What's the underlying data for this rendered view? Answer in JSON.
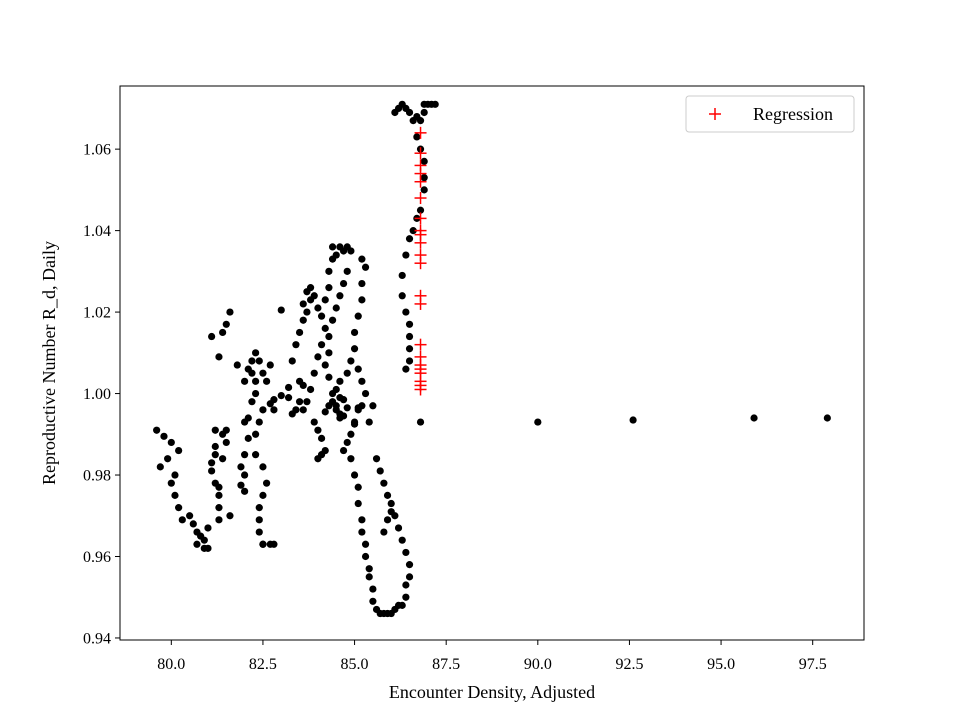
{
  "chart_data": {
    "type": "scatter",
    "title": "",
    "xlabel": "Encounter Density, Adjusted",
    "ylabel": "Reproductive Number R_d, Daily",
    "xlim": [
      78.6,
      98.9
    ],
    "ylim": [
      0.9395,
      1.0755
    ],
    "xticks": [
      80.0,
      82.5,
      85.0,
      87.5,
      90.0,
      92.5,
      95.0,
      97.5
    ],
    "xtick_labels": [
      "80.0",
      "82.5",
      "85.0",
      "87.5",
      "90.0",
      "92.5",
      "95.0",
      "97.5"
    ],
    "yticks": [
      0.94,
      0.96,
      0.98,
      1.0,
      1.02,
      1.04,
      1.06
    ],
    "ytick_labels": [
      "0.94",
      "0.96",
      "0.98",
      "1.00",
      "1.02",
      "1.04",
      "1.06"
    ],
    "grid": false,
    "legend": {
      "position": "top-right",
      "entries": [
        {
          "name": "Regression",
          "marker": "+",
          "color": "#ff0000"
        }
      ]
    },
    "series": [
      {
        "marker": "dot",
        "color": "#000000",
        "points": [
          [
            79.6,
            0.991
          ],
          [
            79.7,
            0.982
          ],
          [
            79.8,
            0.9895
          ],
          [
            79.9,
            0.984
          ],
          [
            80.0,
            0.988
          ],
          [
            80.0,
            0.978
          ],
          [
            80.1,
            0.98
          ],
          [
            80.1,
            0.975
          ],
          [
            80.2,
            0.986
          ],
          [
            80.2,
            0.972
          ],
          [
            80.3,
            0.969
          ],
          [
            80.5,
            0.97
          ],
          [
            80.6,
            0.968
          ],
          [
            80.7,
            0.966
          ],
          [
            80.7,
            0.963
          ],
          [
            80.8,
            0.965
          ],
          [
            80.9,
            0.962
          ],
          [
            80.9,
            0.964
          ],
          [
            81.0,
            0.967
          ],
          [
            81.0,
            0.962
          ],
          [
            81.1,
            0.983
          ],
          [
            81.1,
            0.981
          ],
          [
            81.2,
            0.978
          ],
          [
            81.2,
            0.985
          ],
          [
            81.2,
            0.987
          ],
          [
            81.2,
            0.991
          ],
          [
            81.3,
            0.977
          ],
          [
            81.3,
            0.975
          ],
          [
            81.3,
            0.972
          ],
          [
            81.3,
            0.969
          ],
          [
            81.4,
            0.984
          ],
          [
            81.4,
            0.99
          ],
          [
            81.5,
            0.988
          ],
          [
            81.5,
            0.991
          ],
          [
            81.6,
            0.97
          ],
          [
            81.1,
            1.014
          ],
          [
            81.3,
            1.009
          ],
          [
            81.4,
            1.015
          ],
          [
            81.5,
            1.017
          ],
          [
            81.6,
            1.02
          ],
          [
            81.8,
            1.007
          ],
          [
            82.0,
            1.003
          ],
          [
            82.1,
            1.006
          ],
          [
            82.2,
            1.005
          ],
          [
            82.3,
            1.003
          ],
          [
            82.3,
            1.0
          ],
          [
            82.2,
            0.998
          ],
          [
            82.1,
            0.994
          ],
          [
            82.0,
            0.993
          ],
          [
            82.1,
            0.989
          ],
          [
            82.0,
            0.985
          ],
          [
            82.0,
            0.98
          ],
          [
            81.9,
            0.9775
          ],
          [
            81.9,
            0.982
          ],
          [
            82.0,
            0.976
          ],
          [
            82.2,
            1.008
          ],
          [
            82.3,
            1.01
          ],
          [
            82.4,
            1.008
          ],
          [
            82.5,
            1.005
          ],
          [
            82.6,
            1.003
          ],
          [
            82.7,
            1.007
          ],
          [
            82.5,
            0.996
          ],
          [
            82.4,
            0.993
          ],
          [
            82.3,
            0.99
          ],
          [
            82.3,
            0.985
          ],
          [
            82.5,
            0.982
          ],
          [
            82.6,
            0.978
          ],
          [
            82.5,
            0.975
          ],
          [
            82.4,
            0.972
          ],
          [
            82.4,
            0.969
          ],
          [
            82.4,
            0.966
          ],
          [
            82.5,
            0.963
          ],
          [
            82.7,
            0.963
          ],
          [
            82.8,
            0.963
          ],
          [
            82.5,
            0.963
          ],
          [
            82.7,
            0.9975
          ],
          [
            82.8,
            0.9985
          ],
          [
            82.8,
            0.996
          ],
          [
            83.0,
            1.0205
          ],
          [
            83.0,
            0.9995
          ],
          [
            83.2,
            1.0015
          ],
          [
            83.3,
            1.008
          ],
          [
            83.4,
            1.012
          ],
          [
            83.5,
            1.015
          ],
          [
            83.6,
            1.018
          ],
          [
            83.6,
            1.022
          ],
          [
            83.7,
            1.025
          ],
          [
            83.8,
            1.023
          ],
          [
            83.7,
            1.02
          ],
          [
            83.6,
            1.002
          ],
          [
            83.5,
            0.998
          ],
          [
            83.4,
            0.996
          ],
          [
            83.3,
            0.995
          ],
          [
            83.2,
            0.999
          ],
          [
            83.5,
            1.003
          ],
          [
            83.8,
            1.026
          ],
          [
            83.9,
            1.024
          ],
          [
            84.0,
            1.021
          ],
          [
            84.1,
            1.019
          ],
          [
            84.2,
            1.023
          ],
          [
            84.3,
            1.026
          ],
          [
            84.2,
            1.016
          ],
          [
            84.1,
            1.012
          ],
          [
            84.0,
            1.009
          ],
          [
            83.9,
            1.005
          ],
          [
            83.8,
            1.001
          ],
          [
            83.7,
            0.998
          ],
          [
            83.6,
            0.996
          ],
          [
            83.9,
            0.993
          ],
          [
            84.0,
            0.991
          ],
          [
            84.1,
            0.989
          ],
          [
            84.2,
            0.986
          ],
          [
            84.1,
            0.985
          ],
          [
            84.0,
            0.984
          ],
          [
            84.3,
            1.03
          ],
          [
            84.4,
            1.033
          ],
          [
            84.4,
            1.036
          ],
          [
            84.5,
            1.034
          ],
          [
            84.6,
            1.036
          ],
          [
            84.7,
            1.035
          ],
          [
            84.8,
            1.036
          ],
          [
            84.9,
            1.035
          ],
          [
            84.8,
            1.03
          ],
          [
            84.7,
            1.027
          ],
          [
            84.6,
            1.024
          ],
          [
            84.5,
            1.021
          ],
          [
            84.4,
            1.018
          ],
          [
            84.3,
            1.014
          ],
          [
            84.3,
            1.01
          ],
          [
            84.2,
            1.007
          ],
          [
            84.3,
            1.004
          ],
          [
            84.4,
            1.0
          ],
          [
            84.5,
            0.997
          ],
          [
            84.6,
            0.995
          ],
          [
            84.4,
            0.998
          ],
          [
            84.5,
            0.996
          ],
          [
            84.6,
            0.994
          ],
          [
            84.3,
            0.997
          ],
          [
            84.2,
            0.9955
          ],
          [
            84.6,
            0.999
          ],
          [
            84.7,
            0.9985
          ],
          [
            84.8,
            0.9965
          ],
          [
            84.7,
            0.9945
          ],
          [
            84.5,
            1.001
          ],
          [
            84.6,
            1.003
          ],
          [
            84.8,
            1.005
          ],
          [
            84.9,
            1.008
          ],
          [
            85.0,
            1.011
          ],
          [
            85.0,
            1.015
          ],
          [
            85.1,
            1.019
          ],
          [
            85.2,
            1.023
          ],
          [
            85.2,
            1.027
          ],
          [
            85.3,
            1.031
          ],
          [
            85.2,
            1.033
          ],
          [
            85.1,
            1.006
          ],
          [
            85.2,
            1.003
          ],
          [
            85.3,
            1.0
          ],
          [
            85.2,
            0.997
          ],
          [
            85.1,
            0.996
          ],
          [
            85.0,
            0.993
          ],
          [
            84.9,
            0.99
          ],
          [
            84.8,
            0.988
          ],
          [
            84.7,
            0.986
          ],
          [
            84.9,
            0.984
          ],
          [
            85.0,
            0.98
          ],
          [
            85.1,
            0.977
          ],
          [
            85.1,
            0.973
          ],
          [
            85.2,
            0.969
          ],
          [
            85.2,
            0.966
          ],
          [
            85.3,
            0.963
          ],
          [
            85.3,
            0.96
          ],
          [
            85.4,
            0.957
          ],
          [
            85.4,
            0.955
          ],
          [
            85.5,
            0.952
          ],
          [
            85.5,
            0.949
          ],
          [
            85.6,
            0.947
          ],
          [
            85.7,
            0.946
          ],
          [
            85.8,
            0.946
          ],
          [
            85.9,
            0.946
          ],
          [
            86.0,
            0.946
          ],
          [
            86.1,
            0.947
          ],
          [
            86.2,
            0.948
          ],
          [
            86.3,
            0.948
          ],
          [
            86.4,
            0.95
          ],
          [
            86.4,
            0.953
          ],
          [
            86.5,
            0.955
          ],
          [
            86.5,
            0.958
          ],
          [
            86.4,
            0.961
          ],
          [
            86.3,
            0.964
          ],
          [
            86.2,
            0.967
          ],
          [
            86.1,
            0.97
          ],
          [
            86.0,
            0.973
          ],
          [
            85.9,
            0.969
          ],
          [
            85.8,
            0.966
          ],
          [
            85.4,
            0.993
          ],
          [
            85.5,
            0.997
          ],
          [
            85.6,
            0.984
          ],
          [
            85.7,
            0.981
          ],
          [
            85.8,
            0.978
          ],
          [
            85.9,
            0.975
          ],
          [
            86.0,
            0.971
          ],
          [
            86.4,
            1.006
          ],
          [
            86.5,
            1.008
          ],
          [
            86.5,
            1.011
          ],
          [
            86.5,
            1.014
          ],
          [
            86.5,
            1.017
          ],
          [
            86.4,
            1.02
          ],
          [
            86.3,
            1.024
          ],
          [
            86.3,
            1.029
          ],
          [
            86.4,
            1.034
          ],
          [
            86.5,
            1.038
          ],
          [
            86.6,
            1.04
          ],
          [
            86.7,
            1.043
          ],
          [
            86.8,
            1.045
          ],
          [
            86.9,
            1.05
          ],
          [
            86.9,
            1.053
          ],
          [
            86.9,
            1.057
          ],
          [
            86.8,
            1.06
          ],
          [
            86.7,
            1.063
          ],
          [
            86.6,
            1.067
          ],
          [
            86.5,
            1.069
          ],
          [
            86.4,
            1.07
          ],
          [
            86.3,
            1.071
          ],
          [
            86.2,
            1.07
          ],
          [
            86.1,
            1.069
          ],
          [
            86.9,
            1.071
          ],
          [
            87.0,
            1.071
          ],
          [
            87.1,
            1.071
          ],
          [
            87.2,
            1.071
          ],
          [
            86.7,
            1.068
          ],
          [
            86.8,
            1.067
          ],
          [
            86.9,
            1.069
          ],
          [
            85.0,
            0.9925
          ],
          [
            85.1,
            0.9965
          ],
          [
            86.8,
            0.993
          ],
          [
            90.0,
            0.993
          ],
          [
            92.6,
            0.9935
          ],
          [
            95.9,
            0.994
          ],
          [
            97.9,
            0.994
          ]
        ]
      },
      {
        "name": "Regression",
        "marker": "+",
        "color": "#ff0000",
        "points": [
          [
            86.8,
            1.064
          ],
          [
            86.8,
            1.059
          ],
          [
            86.8,
            1.056
          ],
          [
            86.8,
            1.054
          ],
          [
            86.8,
            1.052
          ],
          [
            86.8,
            1.048
          ],
          [
            86.8,
            1.043
          ],
          [
            86.8,
            1.04
          ],
          [
            86.8,
            1.039
          ],
          [
            86.8,
            1.037
          ],
          [
            86.8,
            1.034
          ],
          [
            86.8,
            1.032
          ],
          [
            86.8,
            1.024
          ],
          [
            86.8,
            1.022
          ],
          [
            86.8,
            1.012
          ],
          [
            86.8,
            1.009
          ],
          [
            86.8,
            1.007
          ],
          [
            86.8,
            1.006
          ],
          [
            86.8,
            1.005
          ],
          [
            86.8,
            1.003
          ],
          [
            86.8,
            1.002
          ],
          [
            86.8,
            1.001
          ]
        ]
      }
    ]
  }
}
